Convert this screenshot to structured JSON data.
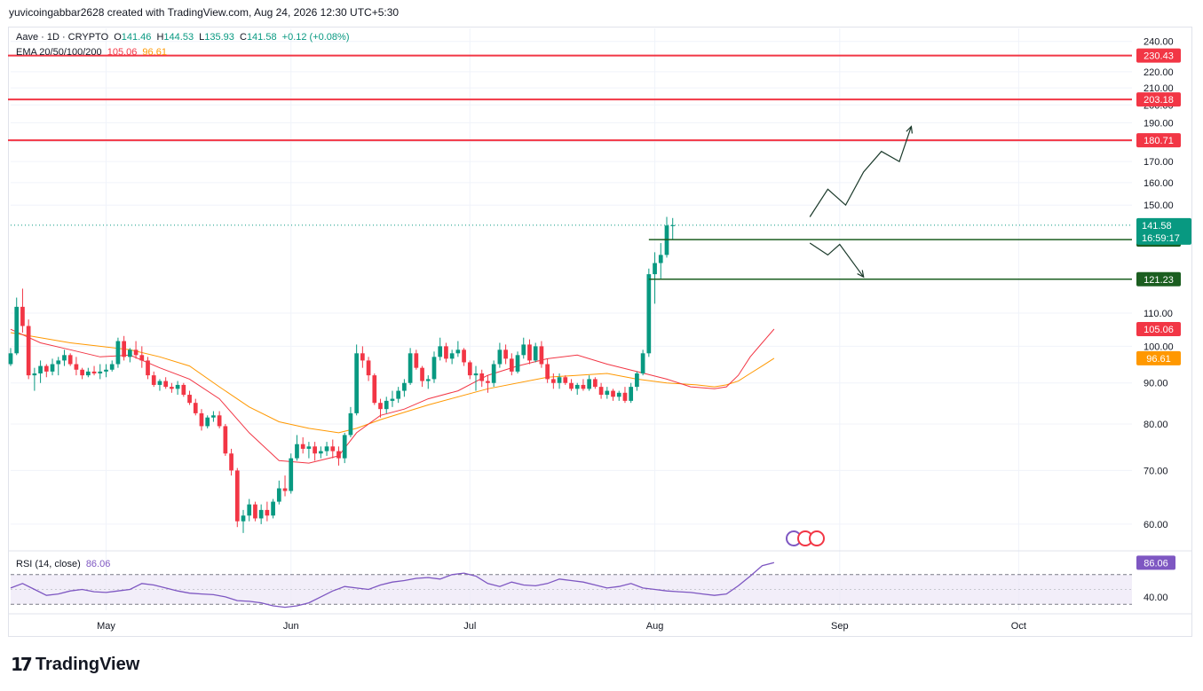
{
  "header": {
    "title": "yuvicoingabbar2628 created with TradingView.com, Aug 24, 2026 12:30 UTC+5:30"
  },
  "legend": {
    "symbol": "Aave · 1D · CRYPTO",
    "o_label": "O",
    "o_value": "141.46",
    "h_label": "H",
    "h_value": "144.53",
    "l_label": "L",
    "l_value": "135.93",
    "c_label": "C",
    "c_value": "141.58",
    "change": "+0.12 (+0.08%)",
    "ema_label": "EMA 20/50/100/200",
    "ema20_value": "105.06",
    "ema50_value": "96.61",
    "rsi_label": "RSI (14, close)",
    "rsi_value": "86.06"
  },
  "colors": {
    "up": "#089981",
    "down": "#f23645",
    "level_red": "#f23645",
    "level_green": "#1b5e20",
    "ema20": "#f23645",
    "ema50": "#ff9800",
    "rsi": "#7e57c2",
    "rsi_band": "#ede7f6"
  },
  "chart_data": {
    "type": "candlestick",
    "title": "Aave · 1D · CRYPTO",
    "y_ticks": [
      60,
      70,
      80,
      90,
      100,
      110,
      150,
      160,
      170,
      180,
      190,
      200,
      210,
      220,
      240
    ],
    "y_tick_labels": [
      "60.00",
      "70.00",
      "80.00",
      "90.00",
      "100.00",
      "110.00",
      "150.00",
      "160.00",
      "170.00",
      "180.00",
      "190.00",
      "200.00",
      "210.00",
      "220.00",
      "240.00"
    ],
    "ylim": [
      56,
      246
    ],
    "x_labels": [
      {
        "day": 16,
        "label": "May"
      },
      {
        "day": 47,
        "label": "Jun"
      },
      {
        "day": 77,
        "label": "Jul"
      },
      {
        "day": 108,
        "label": "Aug"
      },
      {
        "day": 139,
        "label": "Sep"
      },
      {
        "day": 169,
        "label": "Oct"
      }
    ],
    "start_date": "2026-04-15",
    "xlim_days": [
      0,
      188
    ],
    "grid": true,
    "horizontal_levels": [
      {
        "value": 230.43,
        "label": "230.43",
        "color": "#f23645"
      },
      {
        "value": 203.18,
        "label": "203.18",
        "color": "#f23645"
      },
      {
        "value": 180.71,
        "label": "180.71",
        "color": "#f23645"
      },
      {
        "value": 135.86,
        "label": "135.86",
        "color": "#1b5e20"
      },
      {
        "value": 121.23,
        "label": "121.23",
        "color": "#1b5e20"
      }
    ],
    "last_price": {
      "value": 141.58,
      "label": "141.58",
      "countdown": "16:59:17"
    },
    "ema_labels": [
      {
        "value": 105.06,
        "label": "105.06",
        "color": "#f23645"
      },
      {
        "value": 96.61,
        "label": "96.61",
        "color": "#ff9800"
      }
    ],
    "candles": [
      [
        95.0,
        99.5,
        94.5,
        98.0
      ],
      [
        98.0,
        115.0,
        97.5,
        112.0
      ],
      [
        112.0,
        118.0,
        104.0,
        106.0
      ],
      [
        106.0,
        108.0,
        91.0,
        92.0
      ],
      [
        92.0,
        94.0,
        88.0,
        92.5
      ],
      [
        92.5,
        96.0,
        90.0,
        94.5
      ],
      [
        94.5,
        95.0,
        91.5,
        93.0
      ],
      [
        93.0,
        96.5,
        92.0,
        95.0
      ],
      [
        95.0,
        97.0,
        92.0,
        96.0
      ],
      [
        96.0,
        99.0,
        94.5,
        97.5
      ],
      [
        97.5,
        98.0,
        94.5,
        95.0
      ],
      [
        95.0,
        97.0,
        92.0,
        93.5
      ],
      [
        93.5,
        94.0,
        91.0,
        92.0
      ],
      [
        92.0,
        94.0,
        91.5,
        93.0
      ],
      [
        93.0,
        94.5,
        92.0,
        92.5
      ],
      [
        92.5,
        95.0,
        91.0,
        93.0
      ],
      [
        93.0,
        95.0,
        91.5,
        93.5
      ],
      [
        93.5,
        96.0,
        93.0,
        95.0
      ],
      [
        95.0,
        102.5,
        94.0,
        101.5
      ],
      [
        101.5,
        103.0,
        96.0,
        97.0
      ],
      [
        97.0,
        99.5,
        95.5,
        99.0
      ],
      [
        99.0,
        101.5,
        96.5,
        97.5
      ],
      [
        97.5,
        100.0,
        94.0,
        96.0
      ],
      [
        96.0,
        97.0,
        91.0,
        92.0
      ],
      [
        92.0,
        93.0,
        89.0,
        89.5
      ],
      [
        89.5,
        91.0,
        88.0,
        90.5
      ],
      [
        90.5,
        91.5,
        88.5,
        89.0
      ],
      [
        89.0,
        90.0,
        87.5,
        88.5
      ],
      [
        88.5,
        90.5,
        87.0,
        89.5
      ],
      [
        89.5,
        90.0,
        86.5,
        87.0
      ],
      [
        87.0,
        88.0,
        84.5,
        85.0
      ],
      [
        85.0,
        86.0,
        82.0,
        82.5
      ],
      [
        82.5,
        83.5,
        78.5,
        79.5
      ],
      [
        79.5,
        82.0,
        79.0,
        81.5
      ],
      [
        81.5,
        83.0,
        80.5,
        82.0
      ],
      [
        82.0,
        83.0,
        79.0,
        79.5
      ],
      [
        79.5,
        80.0,
        73.0,
        73.5
      ],
      [
        73.5,
        74.5,
        69.0,
        70.0
      ],
      [
        70.0,
        70.5,
        59.5,
        60.5
      ],
      [
        60.5,
        62.5,
        58.5,
        61.5
      ],
      [
        61.5,
        64.5,
        60.5,
        63.5
      ],
      [
        63.5,
        64.0,
        60.5,
        61.0
      ],
      [
        61.0,
        63.5,
        60.0,
        62.5
      ],
      [
        62.5,
        64.0,
        60.5,
        61.5
      ],
      [
        61.5,
        64.5,
        61.0,
        64.0
      ],
      [
        64.0,
        68.0,
        63.5,
        66.5
      ],
      [
        66.5,
        69.0,
        65.0,
        66.0
      ],
      [
        66.0,
        73.5,
        65.5,
        72.5
      ],
      [
        72.5,
        77.5,
        72.0,
        75.5
      ],
      [
        75.5,
        77.0,
        73.5,
        74.5
      ],
      [
        74.5,
        76.0,
        72.5,
        75.0
      ],
      [
        75.0,
        76.0,
        72.0,
        73.5
      ],
      [
        73.5,
        75.0,
        72.5,
        74.0
      ],
      [
        74.0,
        76.0,
        73.0,
        75.0
      ],
      [
        75.0,
        76.5,
        72.5,
        74.0
      ],
      [
        74.0,
        75.0,
        71.0,
        72.5
      ],
      [
        72.5,
        78.0,
        71.5,
        77.5
      ],
      [
        77.5,
        84.0,
        77.0,
        82.5
      ],
      [
        82.5,
        100.5,
        82.0,
        98.0
      ],
      [
        98.0,
        100.0,
        94.0,
        96.0
      ],
      [
        96.0,
        97.0,
        90.5,
        92.0
      ],
      [
        92.0,
        92.5,
        84.5,
        85.0
      ],
      [
        85.0,
        86.0,
        81.5,
        83.5
      ],
      [
        83.5,
        86.5,
        82.5,
        85.5
      ],
      [
        85.5,
        88.0,
        84.0,
        86.0
      ],
      [
        86.0,
        89.0,
        85.0,
        88.0
      ],
      [
        88.0,
        91.0,
        86.5,
        90.0
      ],
      [
        90.0,
        99.5,
        89.5,
        98.0
      ],
      [
        98.0,
        99.0,
        93.5,
        94.0
      ],
      [
        94.0,
        94.5,
        89.0,
        90.5
      ],
      [
        90.5,
        92.0,
        88.5,
        91.0
      ],
      [
        91.0,
        98.5,
        90.0,
        97.0
      ],
      [
        97.0,
        102.5,
        96.0,
        100.0
      ],
      [
        100.0,
        101.0,
        95.5,
        96.5
      ],
      [
        96.5,
        99.0,
        95.0,
        98.0
      ],
      [
        98.0,
        101.5,
        97.0,
        99.0
      ],
      [
        99.0,
        99.5,
        94.5,
        95.5
      ],
      [
        95.5,
        96.0,
        91.0,
        92.0
      ],
      [
        92.0,
        94.5,
        88.0,
        92.5
      ],
      [
        92.5,
        93.5,
        89.0,
        90.5
      ],
      [
        90.5,
        92.0,
        87.5,
        90.0
      ],
      [
        90.0,
        96.0,
        89.0,
        95.0
      ],
      [
        95.0,
        101.0,
        94.0,
        99.0
      ],
      [
        99.0,
        100.5,
        95.0,
        96.5
      ],
      [
        96.5,
        98.0,
        92.0,
        93.0
      ],
      [
        93.0,
        98.5,
        92.5,
        97.5
      ],
      [
        97.5,
        102.5,
        96.5,
        100.5
      ],
      [
        100.5,
        102.0,
        95.0,
        96.0
      ],
      [
        96.0,
        101.0,
        95.5,
        100.0
      ],
      [
        100.0,
        101.5,
        94.0,
        95.0
      ],
      [
        95.0,
        96.5,
        90.0,
        91.0
      ],
      [
        91.0,
        92.5,
        88.5,
        90.0
      ],
      [
        90.0,
        92.5,
        88.5,
        91.5
      ],
      [
        91.5,
        92.0,
        89.5,
        90.0
      ],
      [
        90.0,
        91.0,
        88.0,
        88.5
      ],
      [
        88.5,
        90.0,
        87.0,
        89.5
      ],
      [
        89.5,
        91.0,
        88.0,
        88.5
      ],
      [
        88.5,
        92.0,
        88.0,
        91.0
      ],
      [
        91.0,
        91.5,
        88.5,
        89.0
      ],
      [
        89.0,
        90.0,
        86.0,
        87.0
      ],
      [
        87.0,
        89.0,
        86.0,
        88.0
      ],
      [
        88.0,
        88.5,
        85.5,
        86.5
      ],
      [
        86.5,
        88.0,
        85.5,
        87.5
      ],
      [
        87.5,
        89.0,
        85.0,
        85.5
      ],
      [
        85.5,
        90.0,
        85.0,
        89.0
      ],
      [
        89.0,
        93.0,
        88.0,
        92.5
      ],
      [
        92.5,
        99.0,
        92.0,
        98.0
      ],
      [
        98.0,
        125.0,
        97.0,
        123.0
      ],
      [
        123.0,
        131.0,
        113.0,
        127.0
      ],
      [
        127.0,
        134.5,
        121.5,
        130.0
      ],
      [
        130.0,
        145.0,
        129.0,
        141.46
      ],
      [
        141.46,
        144.53,
        135.93,
        141.58
      ]
    ],
    "ema20": [
      [
        0,
        105.0
      ],
      [
        5,
        101.0
      ],
      [
        10,
        99.0
      ],
      [
        15,
        97.0
      ],
      [
        20,
        97.5
      ],
      [
        25,
        94.0
      ],
      [
        30,
        91.0
      ],
      [
        35,
        86.0
      ],
      [
        40,
        78.0
      ],
      [
        45,
        72.0
      ],
      [
        50,
        71.5
      ],
      [
        55,
        73.0
      ],
      [
        58,
        78.0
      ],
      [
        62,
        82.0
      ],
      [
        66,
        83.5
      ],
      [
        70,
        86.0
      ],
      [
        75,
        88.0
      ],
      [
        80,
        92.0
      ],
      [
        85,
        94.5
      ],
      [
        90,
        96.5
      ],
      [
        95,
        97.5
      ],
      [
        100,
        95.0
      ],
      [
        105,
        93.0
      ],
      [
        110,
        91.0
      ],
      [
        114,
        89.0
      ],
      [
        118,
        88.5
      ],
      [
        120,
        89.0
      ],
      [
        122,
        92.0
      ],
      [
        124,
        97.0
      ],
      [
        126,
        101.0
      ],
      [
        128,
        105.06
      ]
    ],
    "ema50": [
      [
        0,
        104.0
      ],
      [
        10,
        101.0
      ],
      [
        20,
        99.0
      ],
      [
        25,
        97.0
      ],
      [
        30,
        94.5
      ],
      [
        35,
        89.0
      ],
      [
        40,
        84.0
      ],
      [
        45,
        80.5
      ],
      [
        50,
        79.0
      ],
      [
        55,
        78.0
      ],
      [
        58,
        79.0
      ],
      [
        62,
        81.0
      ],
      [
        70,
        84.5
      ],
      [
        80,
        88.5
      ],
      [
        90,
        91.5
      ],
      [
        100,
        92.5
      ],
      [
        105,
        91.0
      ],
      [
        110,
        90.0
      ],
      [
        115,
        89.5
      ],
      [
        118,
        89.0
      ],
      [
        120,
        89.5
      ],
      [
        122,
        90.5
      ],
      [
        124,
        92.5
      ],
      [
        126,
        94.5
      ],
      [
        128,
        96.61
      ]
    ],
    "projection_up": [
      [
        134,
        145.0
      ],
      [
        137,
        157.0
      ],
      [
        140,
        150.0
      ],
      [
        143,
        165.0
      ],
      [
        146,
        175.0
      ],
      [
        149,
        170.0
      ],
      [
        151,
        188.0
      ]
    ],
    "projection_down": [
      [
        134,
        134.5
      ],
      [
        137,
        130.0
      ],
      [
        139,
        134.0
      ],
      [
        143,
        122.0
      ]
    ],
    "rsi": {
      "label": "RSI (14, close)",
      "value": 86.06,
      "ylim": [
        22,
        96
      ],
      "upper_band": 70,
      "lower_band": 30,
      "tick_label": "40.00",
      "tick_value": 40,
      "points": [
        [
          0,
          52
        ],
        [
          2,
          58
        ],
        [
          4,
          50
        ],
        [
          6,
          42
        ],
        [
          8,
          44
        ],
        [
          10,
          48
        ],
        [
          12,
          50
        ],
        [
          14,
          47
        ],
        [
          16,
          46
        ],
        [
          18,
          48
        ],
        [
          20,
          50
        ],
        [
          22,
          58
        ],
        [
          24,
          56
        ],
        [
          26,
          52
        ],
        [
          28,
          48
        ],
        [
          30,
          45
        ],
        [
          32,
          44
        ],
        [
          34,
          43
        ],
        [
          36,
          40
        ],
        [
          38,
          35
        ],
        [
          40,
          34
        ],
        [
          42,
          32
        ],
        [
          44,
          28
        ],
        [
          46,
          26
        ],
        [
          48,
          28
        ],
        [
          50,
          32
        ],
        [
          52,
          40
        ],
        [
          54,
          48
        ],
        [
          56,
          54
        ],
        [
          58,
          52
        ],
        [
          60,
          50
        ],
        [
          62,
          56
        ],
        [
          64,
          60
        ],
        [
          66,
          62
        ],
        [
          68,
          65
        ],
        [
          70,
          66
        ],
        [
          72,
          64
        ],
        [
          74,
          70
        ],
        [
          76,
          72
        ],
        [
          78,
          68
        ],
        [
          80,
          58
        ],
        [
          82,
          54
        ],
        [
          84,
          60
        ],
        [
          86,
          56
        ],
        [
          88,
          55
        ],
        [
          90,
          58
        ],
        [
          92,
          64
        ],
        [
          94,
          62
        ],
        [
          96,
          60
        ],
        [
          98,
          56
        ],
        [
          100,
          52
        ],
        [
          102,
          54
        ],
        [
          104,
          58
        ],
        [
          106,
          52
        ],
        [
          108,
          50
        ],
        [
          110,
          48
        ],
        [
          112,
          47
        ],
        [
          114,
          46
        ],
        [
          116,
          44
        ],
        [
          118,
          42
        ],
        [
          120,
          44
        ],
        [
          122,
          55
        ],
        [
          124,
          68
        ],
        [
          126,
          82
        ],
        [
          128,
          86.06
        ]
      ]
    }
  }
}
